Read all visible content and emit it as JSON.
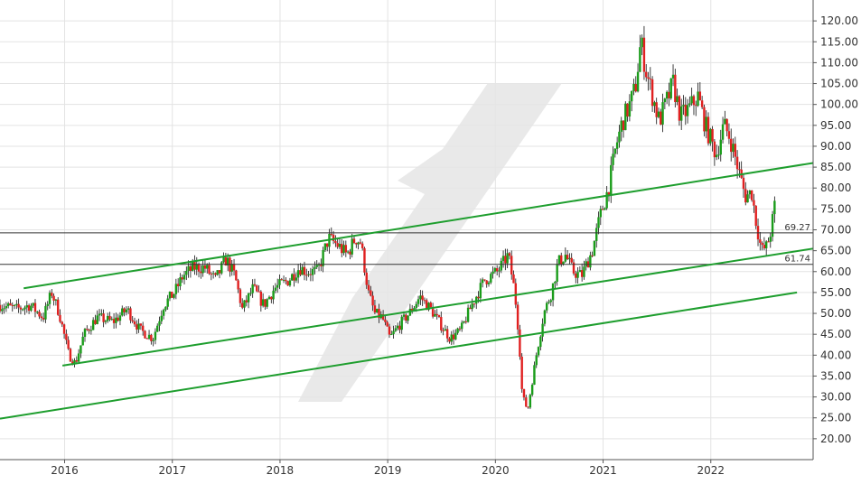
{
  "chart_data": {
    "type": "candlestick",
    "title": "",
    "xlabel": "",
    "ylabel": "",
    "x_range": [
      2015.4,
      2022.95
    ],
    "ylim": [
      15,
      125
    ],
    "y_ticks": [
      "20.00",
      "25.00",
      "30.00",
      "35.00",
      "40.00",
      "45.00",
      "50.00",
      "55.00",
      "60.00",
      "65.00",
      "70.00",
      "75.00",
      "80.00",
      "85.00",
      "90.00",
      "95.00",
      "100.00",
      "105.00",
      "110.00",
      "115.00",
      "120.00"
    ],
    "x_ticks": [
      {
        "label": "2016",
        "value": 2016.0
      },
      {
        "label": "2017",
        "value": 2017.0
      },
      {
        "label": "2018",
        "value": 2018.0
      },
      {
        "label": "2019",
        "value": 2019.0
      },
      {
        "label": "2020",
        "value": 2020.0
      },
      {
        "label": "2021",
        "value": 2021.0
      },
      {
        "label": "2022",
        "value": 2022.0
      }
    ],
    "grid": true,
    "up_color": "#1a9c1a",
    "down_color": "#e02020",
    "trend_color": "#1e9e2e",
    "horizontal_levels": [
      {
        "label": "69.27",
        "value": 69.27
      },
      {
        "label": "61.74",
        "value": 61.74
      }
    ],
    "trendlines": [
      {
        "x1": 2015.62,
        "y1": 56.0,
        "x2": 2022.95,
        "y2": 86.0
      },
      {
        "x1": 2015.98,
        "y1": 37.5,
        "x2": 2022.95,
        "y2": 65.5
      },
      {
        "x1": 2015.4,
        "y1": 24.8,
        "x2": 2022.8,
        "y2": 55.0
      }
    ],
    "price_path": [
      [
        2015.4,
        52
      ],
      [
        2015.55,
        51
      ],
      [
        2015.68,
        52
      ],
      [
        2015.8,
        49
      ],
      [
        2015.88,
        55
      ],
      [
        2015.95,
        50
      ],
      [
        2016.04,
        40
      ],
      [
        2016.1,
        38
      ],
      [
        2016.18,
        45
      ],
      [
        2016.3,
        49
      ],
      [
        2016.45,
        48
      ],
      [
        2016.58,
        51
      ],
      [
        2016.7,
        46
      ],
      [
        2016.82,
        44
      ],
      [
        2016.92,
        52
      ],
      [
        2017.02,
        55
      ],
      [
        2017.1,
        59
      ],
      [
        2017.2,
        61
      ],
      [
        2017.3,
        61
      ],
      [
        2017.4,
        58
      ],
      [
        2017.5,
        63
      ],
      [
        2017.58,
        59
      ],
      [
        2017.65,
        51
      ],
      [
        2017.75,
        56
      ],
      [
        2017.85,
        52
      ],
      [
        2017.95,
        56
      ],
      [
        2018.08,
        58
      ],
      [
        2018.18,
        61
      ],
      [
        2018.25,
        60
      ],
      [
        2018.35,
        60
      ],
      [
        2018.45,
        68
      ],
      [
        2018.55,
        66
      ],
      [
        2018.62,
        64
      ],
      [
        2018.7,
        68
      ],
      [
        2018.75,
        67
      ],
      [
        2018.82,
        55
      ],
      [
        2018.88,
        50
      ],
      [
        2018.95,
        49
      ],
      [
        2019.02,
        44
      ],
      [
        2019.1,
        47
      ],
      [
        2019.2,
        50
      ],
      [
        2019.3,
        54
      ],
      [
        2019.4,
        51
      ],
      [
        2019.5,
        47
      ],
      [
        2019.58,
        44
      ],
      [
        2019.68,
        46
      ],
      [
        2019.78,
        52
      ],
      [
        2019.9,
        58
      ],
      [
        2020.02,
        60
      ],
      [
        2020.12,
        64
      ],
      [
        2020.18,
        55
      ],
      [
        2020.22,
        44
      ],
      [
        2020.25,
        30
      ],
      [
        2020.3,
        27
      ],
      [
        2020.38,
        40
      ],
      [
        2020.45,
        50
      ],
      [
        2020.52,
        55
      ],
      [
        2020.58,
        62
      ],
      [
        2020.65,
        64
      ],
      [
        2020.72,
        60
      ],
      [
        2020.8,
        59
      ],
      [
        2020.9,
        65
      ],
      [
        2020.97,
        73
      ],
      [
        2021.05,
        80
      ],
      [
        2021.12,
        90
      ],
      [
        2021.18,
        96
      ],
      [
        2021.25,
        100
      ],
      [
        2021.3,
        104
      ],
      [
        2021.35,
        115
      ],
      [
        2021.4,
        108
      ],
      [
        2021.45,
        103
      ],
      [
        2021.52,
        96
      ],
      [
        2021.58,
        100
      ],
      [
        2021.65,
        105
      ],
      [
        2021.72,
        97
      ],
      [
        2021.8,
        99
      ],
      [
        2021.88,
        102
      ],
      [
        2021.95,
        95
      ],
      [
        2022.05,
        88
      ],
      [
        2022.12,
        95
      ],
      [
        2022.18,
        92
      ],
      [
        2022.25,
        85
      ],
      [
        2022.32,
        78
      ],
      [
        2022.38,
        79
      ],
      [
        2022.42,
        72
      ],
      [
        2022.47,
        65
      ],
      [
        2022.52,
        66
      ],
      [
        2022.56,
        70
      ],
      [
        2022.6,
        77
      ]
    ]
  },
  "watermark": {
    "color": "#e5e5e5"
  }
}
